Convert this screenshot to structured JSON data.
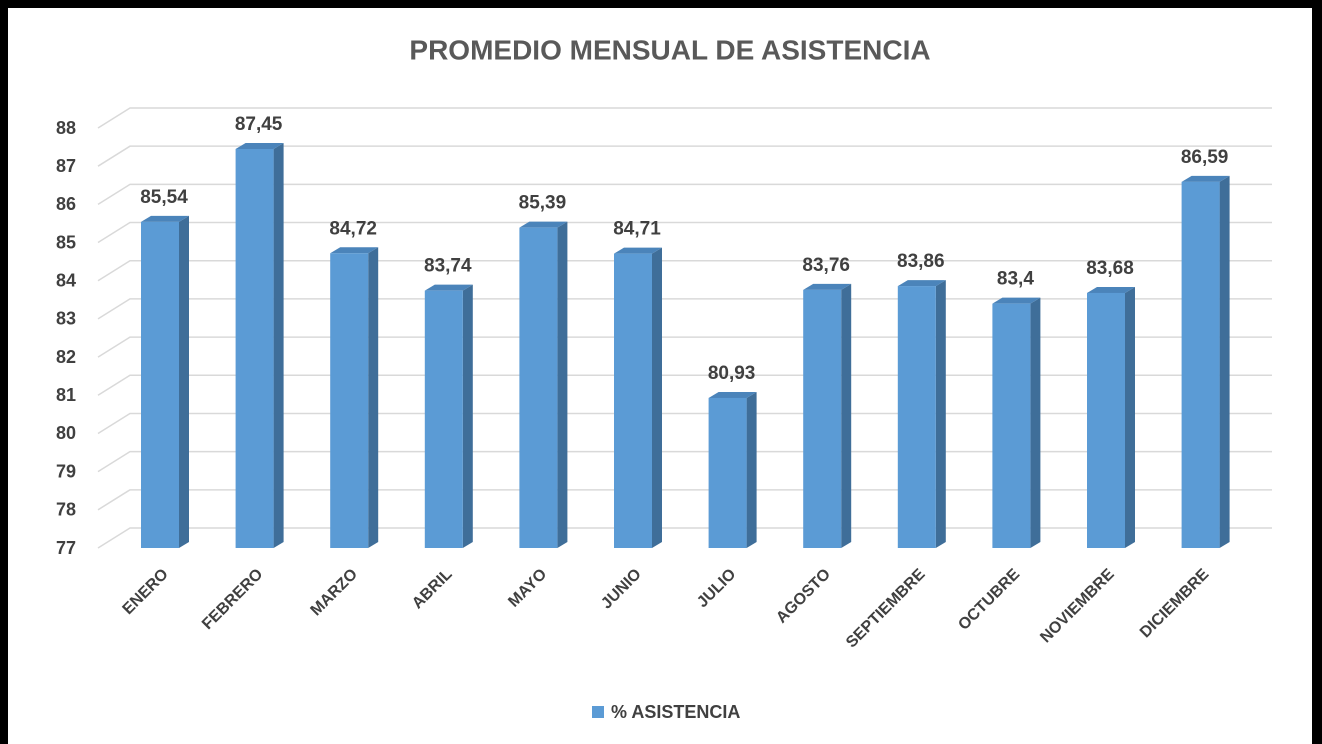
{
  "chart_data": {
    "type": "bar3d",
    "title": "PROMEDIO MENSUAL DE ASISTENCIA",
    "categories": [
      "ENERO",
      "FEBRERO",
      "MARZO",
      "ABRIL",
      "MAYO",
      "JUNIO",
      "JULIO",
      "AGOSTO",
      "SEPTIEMBRE",
      "OCTUBRE",
      "NOVIEMBRE",
      "DICIEMBRE"
    ],
    "series": [
      {
        "name": "% ASISTENCIA",
        "color": "#5b9bd5",
        "values": [
          85.54,
          87.45,
          84.72,
          83.74,
          85.39,
          84.71,
          80.93,
          83.76,
          83.86,
          83.4,
          83.68,
          86.59
        ],
        "value_labels": [
          "85,54",
          "87,45",
          "84,72",
          "83,74",
          "85,39",
          "84,71",
          "80,93",
          "83,76",
          "83,86",
          "83,4",
          "83,68",
          "86,59"
        ]
      }
    ],
    "ylim": [
      77,
      88
    ],
    "yticks": [
      77,
      78,
      79,
      80,
      81,
      82,
      83,
      84,
      85,
      86,
      87,
      88
    ],
    "grid": true,
    "legend": "bottom"
  }
}
